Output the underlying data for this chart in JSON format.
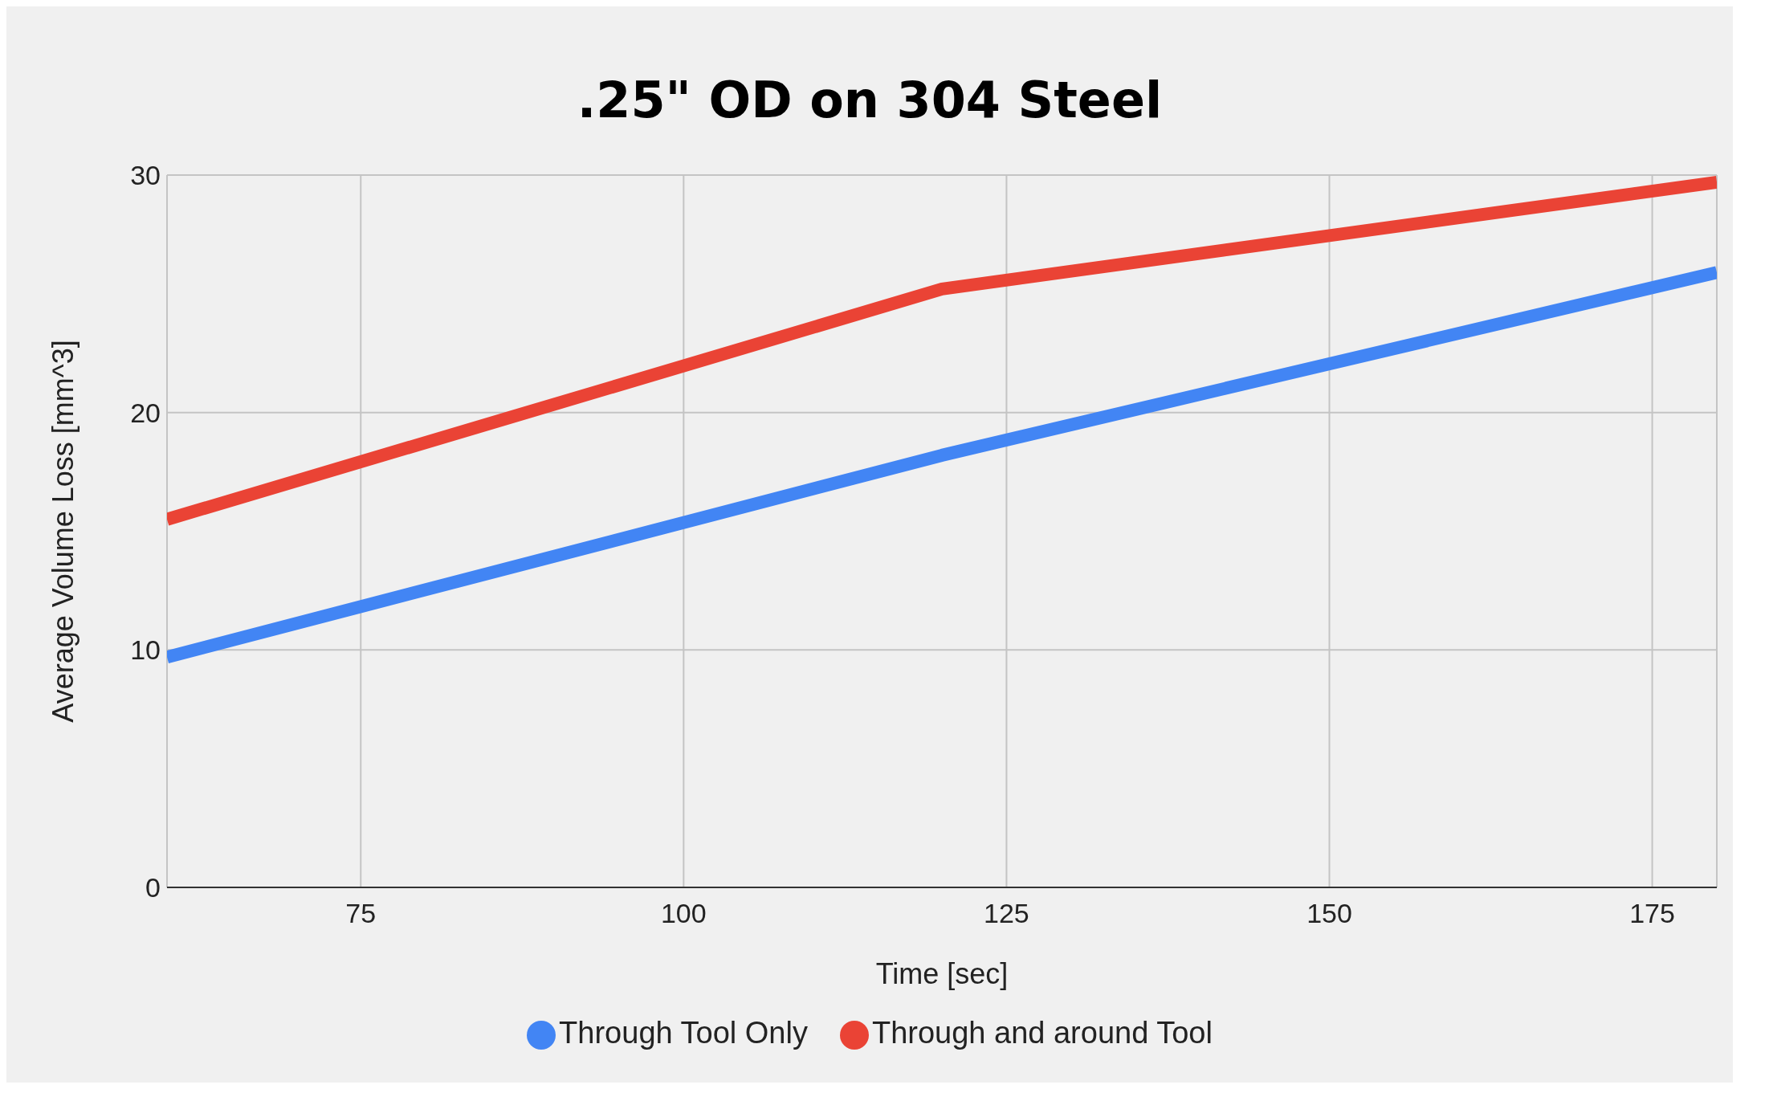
{
  "chart_data": {
    "type": "line",
    "title": ".25\" OD on 304 Steel",
    "xlabel": "Time [sec]",
    "ylabel": "Average Volume Loss [mm^3]",
    "x": [
      60,
      120,
      180
    ],
    "series": [
      {
        "name": "Through Tool Only",
        "color": "#4285f4",
        "values": [
          9.7,
          18.2,
          25.9
        ]
      },
      {
        "name": "Through and around Tool",
        "color": "#ea4335",
        "values": [
          15.5,
          25.2,
          29.7
        ]
      }
    ],
    "xlim": [
      60,
      180
    ],
    "xticks": [
      75,
      100,
      125,
      150,
      175
    ],
    "ylim": [
      0,
      30
    ],
    "yticks": [
      0,
      10,
      20,
      30
    ],
    "grid": true,
    "legend": "bottom",
    "marker": "none",
    "line_style": "solid"
  }
}
